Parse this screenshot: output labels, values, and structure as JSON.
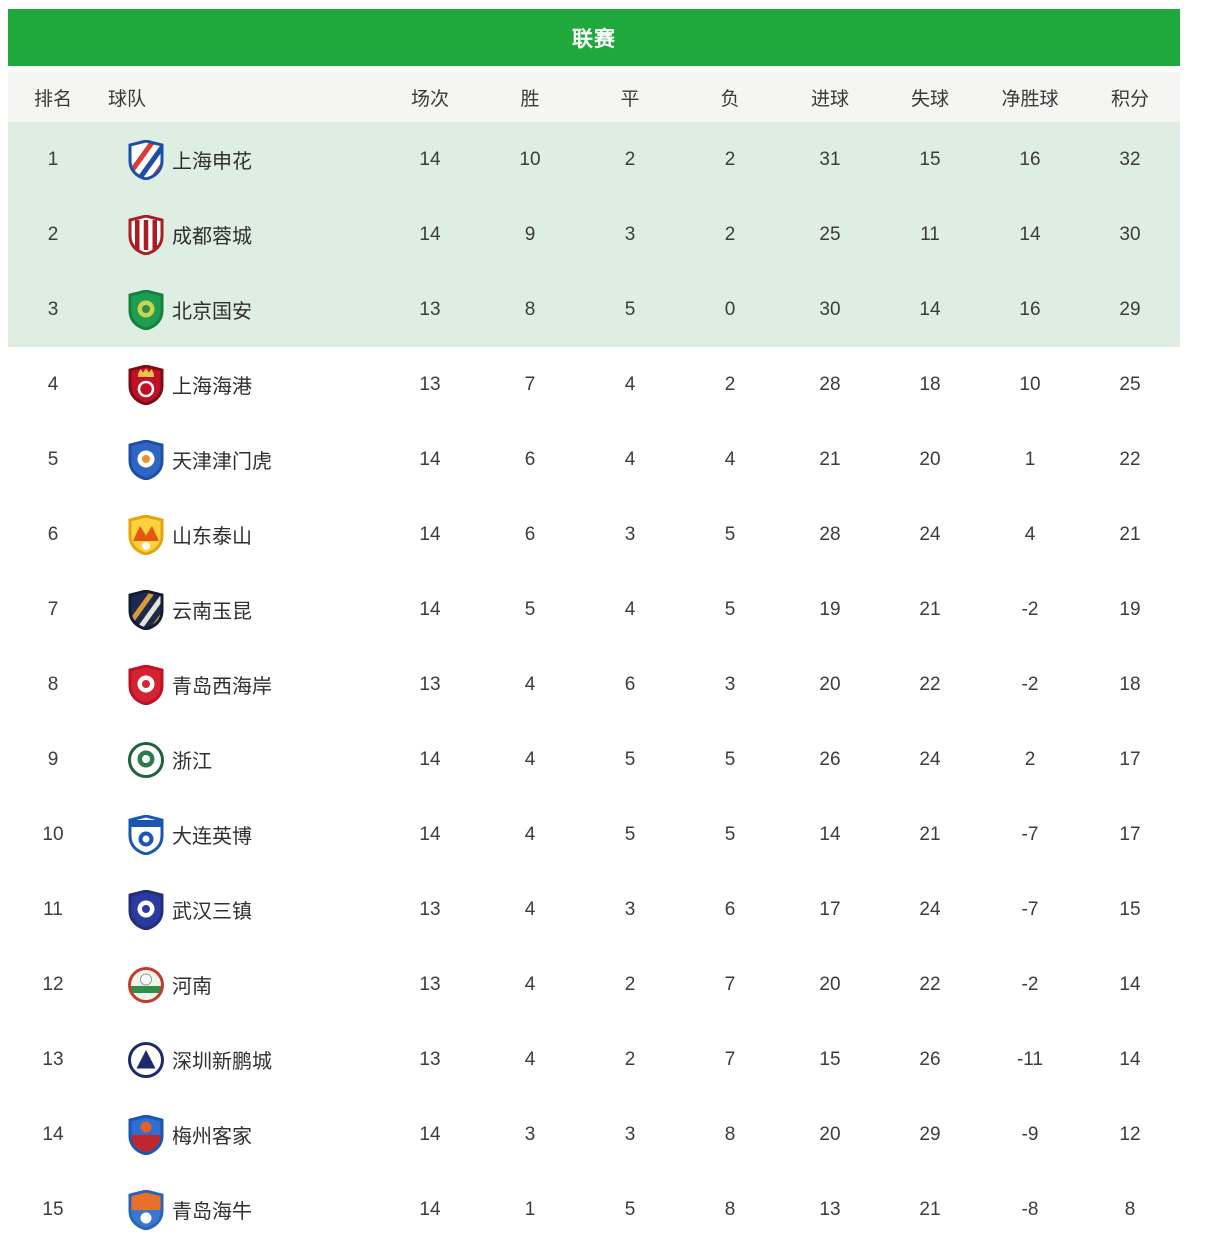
{
  "title_bar": {
    "title": "联赛"
  },
  "columns": [
    "排名",
    "球队",
    "场次",
    "胜",
    "平",
    "负",
    "进球",
    "失球",
    "净胜球",
    "积分"
  ],
  "colors": {
    "title_bar_bg": "#1FA83C",
    "title_text": "#FFFFFF",
    "header_row_bg": "#F5F5F3",
    "highlight_row_bg": "#DEEEE2",
    "row_bg": "#FFFFFF",
    "text": "#3C3C3C"
  },
  "highlight_top_n": 3,
  "stat_keys": [
    "played",
    "won",
    "drawn",
    "lost",
    "goals_for",
    "goals_against",
    "goal_diff",
    "points"
  ],
  "teams": [
    {
      "rank": "1",
      "name": "上海申花",
      "played": "14",
      "won": "10",
      "drawn": "2",
      "lost": "2",
      "goals_for": "31",
      "goals_against": "15",
      "goal_diff": "16",
      "points": "32",
      "logo": {
        "icon": "shanghai-shenhua-crest",
        "shape": "shield",
        "decor": "diag",
        "border": "#1B4FA7",
        "field": "#FFFFFF",
        "accent": "#D93A3A",
        "accent2": "#1B4FA7"
      }
    },
    {
      "rank": "2",
      "name": "成都蓉城",
      "played": "14",
      "won": "9",
      "drawn": "3",
      "lost": "2",
      "goals_for": "25",
      "goals_against": "11",
      "goal_diff": "14",
      "points": "30",
      "logo": {
        "icon": "chengdu-rongcheng-crest",
        "shape": "shield",
        "decor": "vbars",
        "border": "#A81E22",
        "field": "#FFFFFF",
        "accent": "#A81E22",
        "accent2": "#A81E22"
      }
    },
    {
      "rank": "3",
      "name": "北京国安",
      "played": "13",
      "won": "8",
      "drawn": "5",
      "lost": "0",
      "goals_for": "30",
      "goals_against": "14",
      "goal_diff": "16",
      "points": "29",
      "logo": {
        "icon": "beijing-guoan-crest",
        "shape": "shield",
        "decor": "ball",
        "border": "#157F3D",
        "field": "#1E9E50",
        "accent": "#C9D64C",
        "accent2": "#2E8B57"
      }
    },
    {
      "rank": "4",
      "name": "上海海港",
      "played": "13",
      "won": "7",
      "drawn": "4",
      "lost": "2",
      "goals_for": "28",
      "goals_against": "18",
      "goal_diff": "10",
      "points": "25",
      "logo": {
        "icon": "shanghai-port-crest",
        "shape": "shield",
        "decor": "crown",
        "border": "#7A0C14",
        "field": "#C01025",
        "accent": "#F0C24A",
        "accent2": "#FFFFFF"
      }
    },
    {
      "rank": "5",
      "name": "天津津门虎",
      "played": "14",
      "won": "6",
      "drawn": "4",
      "lost": "4",
      "goals_for": "21",
      "goals_against": "20",
      "goal_diff": "1",
      "points": "22",
      "logo": {
        "icon": "tianjin-jinmen-tiger-crest",
        "shape": "shield",
        "decor": "ball",
        "border": "#1F4FA5",
        "field": "#2F66C4",
        "accent": "#FFFFFF",
        "accent2": "#F08C2E"
      }
    },
    {
      "rank": "6",
      "name": "山东泰山",
      "played": "14",
      "won": "6",
      "drawn": "3",
      "lost": "5",
      "goals_for": "28",
      "goals_against": "24",
      "goal_diff": "4",
      "points": "21",
      "logo": {
        "icon": "shandong-taishan-crest",
        "shape": "shield",
        "decor": "mountain",
        "border": "#E8A20C",
        "field": "#FDD23E",
        "accent": "#E4570F",
        "accent2": "#FFFFFF"
      }
    },
    {
      "rank": "7",
      "name": "云南玉昆",
      "played": "14",
      "won": "5",
      "drawn": "4",
      "lost": "5",
      "goals_for": "19",
      "goals_against": "21",
      "goal_diff": "-2",
      "points": "19",
      "logo": {
        "icon": "yunnan-yukun-crest",
        "shape": "shield",
        "decor": "diag",
        "border": "#131C33",
        "field": "#1C2B4D",
        "accent": "#D99A3C",
        "accent2": "#E8E4DA"
      }
    },
    {
      "rank": "8",
      "name": "青岛西海岸",
      "played": "13",
      "won": "4",
      "drawn": "6",
      "lost": "3",
      "goals_for": "20",
      "goals_against": "22",
      "goal_diff": "-2",
      "points": "18",
      "logo": {
        "icon": "qingdao-west-coast-crest",
        "shape": "shield",
        "decor": "ball",
        "border": "#C01025",
        "field": "#D42333",
        "accent": "#FFFFFF",
        "accent2": "#D42333"
      }
    },
    {
      "rank": "9",
      "name": "浙江",
      "played": "14",
      "won": "4",
      "drawn": "5",
      "lost": "5",
      "goals_for": "26",
      "goals_against": "24",
      "goal_diff": "2",
      "points": "17",
      "logo": {
        "icon": "zhejiang-crest",
        "shape": "circle",
        "decor": "ball",
        "border": "#20603C",
        "field": "#FFFFFF",
        "accent": "#2C7A4B",
        "accent2": "#FFFFFF"
      }
    },
    {
      "rank": "10",
      "name": "大连英博",
      "played": "14",
      "won": "4",
      "drawn": "5",
      "lost": "5",
      "goals_for": "14",
      "goals_against": "21",
      "goal_diff": "-7",
      "points": "17",
      "logo": {
        "icon": "dalian-yingbo-crest",
        "shape": "shield",
        "decor": "banner",
        "border": "#1A57B5",
        "field": "#FFFFFF",
        "accent": "#1A57B5",
        "accent2": "#FFFFFF"
      }
    },
    {
      "rank": "11",
      "name": "武汉三镇",
      "played": "13",
      "won": "4",
      "drawn": "3",
      "lost": "6",
      "goals_for": "17",
      "goals_against": "24",
      "goal_diff": "-7",
      "points": "15",
      "logo": {
        "icon": "wuhan-three-towns-crest",
        "shape": "shield",
        "decor": "ball",
        "border": "#232E7A",
        "field": "#2B3A9E",
        "accent": "#FFFFFF",
        "accent2": "#2B3A9E"
      }
    },
    {
      "rank": "12",
      "name": "河南",
      "played": "13",
      "won": "4",
      "drawn": "2",
      "lost": "7",
      "goals_for": "20",
      "goals_against": "22",
      "goal_diff": "-2",
      "points": "14",
      "logo": {
        "icon": "henan-crest",
        "shape": "circle",
        "decor": "band",
        "border": "#C43A2F",
        "field": "#EEF5EA",
        "accent": "#2F8F46",
        "accent2": "#FFFFFF"
      }
    },
    {
      "rank": "13",
      "name": "深圳新鹏城",
      "played": "13",
      "won": "4",
      "drawn": "2",
      "lost": "7",
      "goals_for": "15",
      "goals_against": "26",
      "goal_diff": "-11",
      "points": "14",
      "logo": {
        "icon": "shenzhen-peng-city-crest",
        "shape": "circle",
        "decor": "tri",
        "border": "#1C2A6B",
        "field": "#FFFFFF",
        "accent": "#1C2A6B",
        "accent2": "#1C2A6B"
      }
    },
    {
      "rank": "14",
      "name": "梅州客家",
      "played": "14",
      "won": "3",
      "drawn": "3",
      "lost": "8",
      "goals_for": "20",
      "goals_against": "29",
      "goal_diff": "-9",
      "points": "12",
      "logo": {
        "icon": "meizhou-hakka-crest",
        "shape": "shield",
        "decor": "half",
        "border": "#1A57B5",
        "field": "#2F6FD0",
        "accent": "#E2622B",
        "accent2": "#C0272D"
      }
    },
    {
      "rank": "15",
      "name": "青岛海牛",
      "played": "14",
      "won": "1",
      "drawn": "5",
      "lost": "8",
      "goals_for": "13",
      "goals_against": "21",
      "goal_diff": "-8",
      "points": "8",
      "logo": {
        "icon": "qingdao-hainiu-crest",
        "shape": "shield",
        "decor": "topfill",
        "border": "#2A64B8",
        "field": "#3A77CF",
        "accent": "#FFFFFF",
        "accent2": "#E8702A"
      }
    }
  ]
}
